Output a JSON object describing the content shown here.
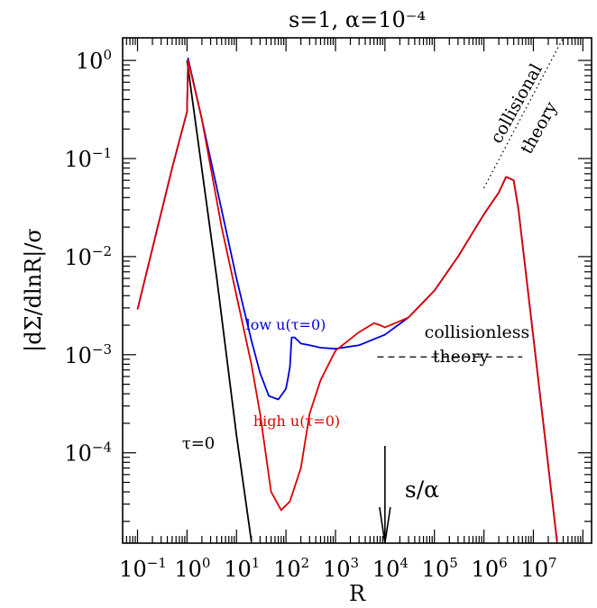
{
  "chart_data": {
    "type": "line",
    "title": "s=1,  α=10⁻⁴",
    "xlabel": "R",
    "ylabel": "|dΣ/dlnR|/σ",
    "x_scale": "log",
    "y_scale": "log",
    "xlim": [
      0.05,
      150000000.0
    ],
    "ylim": [
      1.2e-05,
      1.7
    ],
    "x_ticks": [
      {
        "base": "10",
        "exp": "−1",
        "value": 0.1
      },
      {
        "base": "10",
        "exp": "0",
        "value": 1
      },
      {
        "base": "10",
        "exp": "1",
        "value": 10
      },
      {
        "base": "10",
        "exp": "2",
        "value": 100
      },
      {
        "base": "10",
        "exp": "3",
        "value": 1000
      },
      {
        "base": "10",
        "exp": "4",
        "value": 10000
      },
      {
        "base": "10",
        "exp": "5",
        "value": 100000
      },
      {
        "base": "10",
        "exp": "6",
        "value": 1000000
      },
      {
        "base": "10",
        "exp": "7",
        "value": 10000000
      }
    ],
    "y_ticks": [
      {
        "base": "10",
        "exp": "0",
        "value": 1
      },
      {
        "base": "10",
        "exp": "−1",
        "value": 0.1
      },
      {
        "base": "10",
        "exp": "−2",
        "value": 0.01
      },
      {
        "base": "10",
        "exp": "−3",
        "value": 0.001
      },
      {
        "base": "10",
        "exp": "−4",
        "value": 0.0001
      }
    ],
    "grid": false,
    "series": [
      {
        "name": "τ=0",
        "color": "#000000",
        "x": [
          1.0,
          4,
          10,
          20
        ],
        "y": [
          1.0,
          0.006,
          0.00015,
          1.25e-05
        ]
      },
      {
        "name": "low u(τ=0)",
        "color": "#0000dd",
        "x": [
          0.1,
          0.5,
          1.0,
          1.05,
          2,
          5,
          10,
          20,
          30,
          45,
          70,
          100,
          110,
          120,
          130,
          150,
          200,
          300,
          500,
          1000,
          3000,
          10000,
          30000,
          100000,
          300000,
          1000000,
          2000000,
          2800000,
          4000000,
          5000000,
          10000000,
          30000000
        ],
        "y": [
          0.0029,
          0.08,
          0.3,
          1.05,
          0.25,
          0.03,
          0.006,
          0.0014,
          0.00065,
          0.00038,
          0.00035,
          0.00045,
          0.00058,
          0.00075,
          0.0015,
          0.0015,
          0.0013,
          0.00125,
          0.00118,
          0.00115,
          0.00125,
          0.0016,
          0.0024,
          0.0045,
          0.01,
          0.027,
          0.045,
          0.065,
          0.06,
          0.03,
          0.0015,
          1.25e-05
        ]
      },
      {
        "name": "high u(τ=0)",
        "color": "#dd0000",
        "x": [
          0.1,
          0.5,
          1.0,
          1.05,
          2,
          5,
          10,
          20,
          30,
          50,
          80,
          120,
          200,
          300,
          500,
          1000,
          3000,
          6000,
          8000,
          10000,
          30000,
          100000,
          300000,
          1000000,
          2000000,
          2800000,
          4000000,
          5000000,
          10000000,
          30000000
        ],
        "y": [
          0.0029,
          0.08,
          0.3,
          1.0,
          0.25,
          0.02,
          0.004,
          0.0008,
          0.00025,
          4e-05,
          2.6e-05,
          3.2e-05,
          7e-05,
          0.00025,
          0.00055,
          0.0011,
          0.0017,
          0.0021,
          0.002,
          0.0019,
          0.0024,
          0.0045,
          0.01,
          0.027,
          0.045,
          0.065,
          0.06,
          0.03,
          0.0015,
          1.25e-05
        ]
      }
    ],
    "reference_lines": [
      {
        "label": "collisional theory",
        "style": "dotted",
        "x": [
          1000000,
          40000000
        ],
        "y": [
          0.05,
          1.7
        ]
      },
      {
        "label": "collisionless theory",
        "style": "dashed",
        "x": [
          7000,
          6000000
        ],
        "y": [
          0.00095,
          0.00095
        ]
      }
    ],
    "annotations": [
      {
        "id": "low",
        "text": "low u(τ=0)",
        "color": "#0000dd"
      },
      {
        "id": "high",
        "text": "high u(τ=0)",
        "color": "#dd0000"
      },
      {
        "id": "tau0",
        "text": "τ=0",
        "color": "#000000"
      },
      {
        "id": "collisional_1",
        "text": "collisional",
        "color": "#000000"
      },
      {
        "id": "collisional_2",
        "text": "theory",
        "color": "#000000"
      },
      {
        "id": "collisionless_1",
        "text": "collisionless",
        "color": "#000000"
      },
      {
        "id": "collisionless_2",
        "text": "theory",
        "color": "#000000"
      },
      {
        "id": "s_alpha",
        "text": "s/α",
        "color": "#000000",
        "x": 10000
      }
    ]
  }
}
